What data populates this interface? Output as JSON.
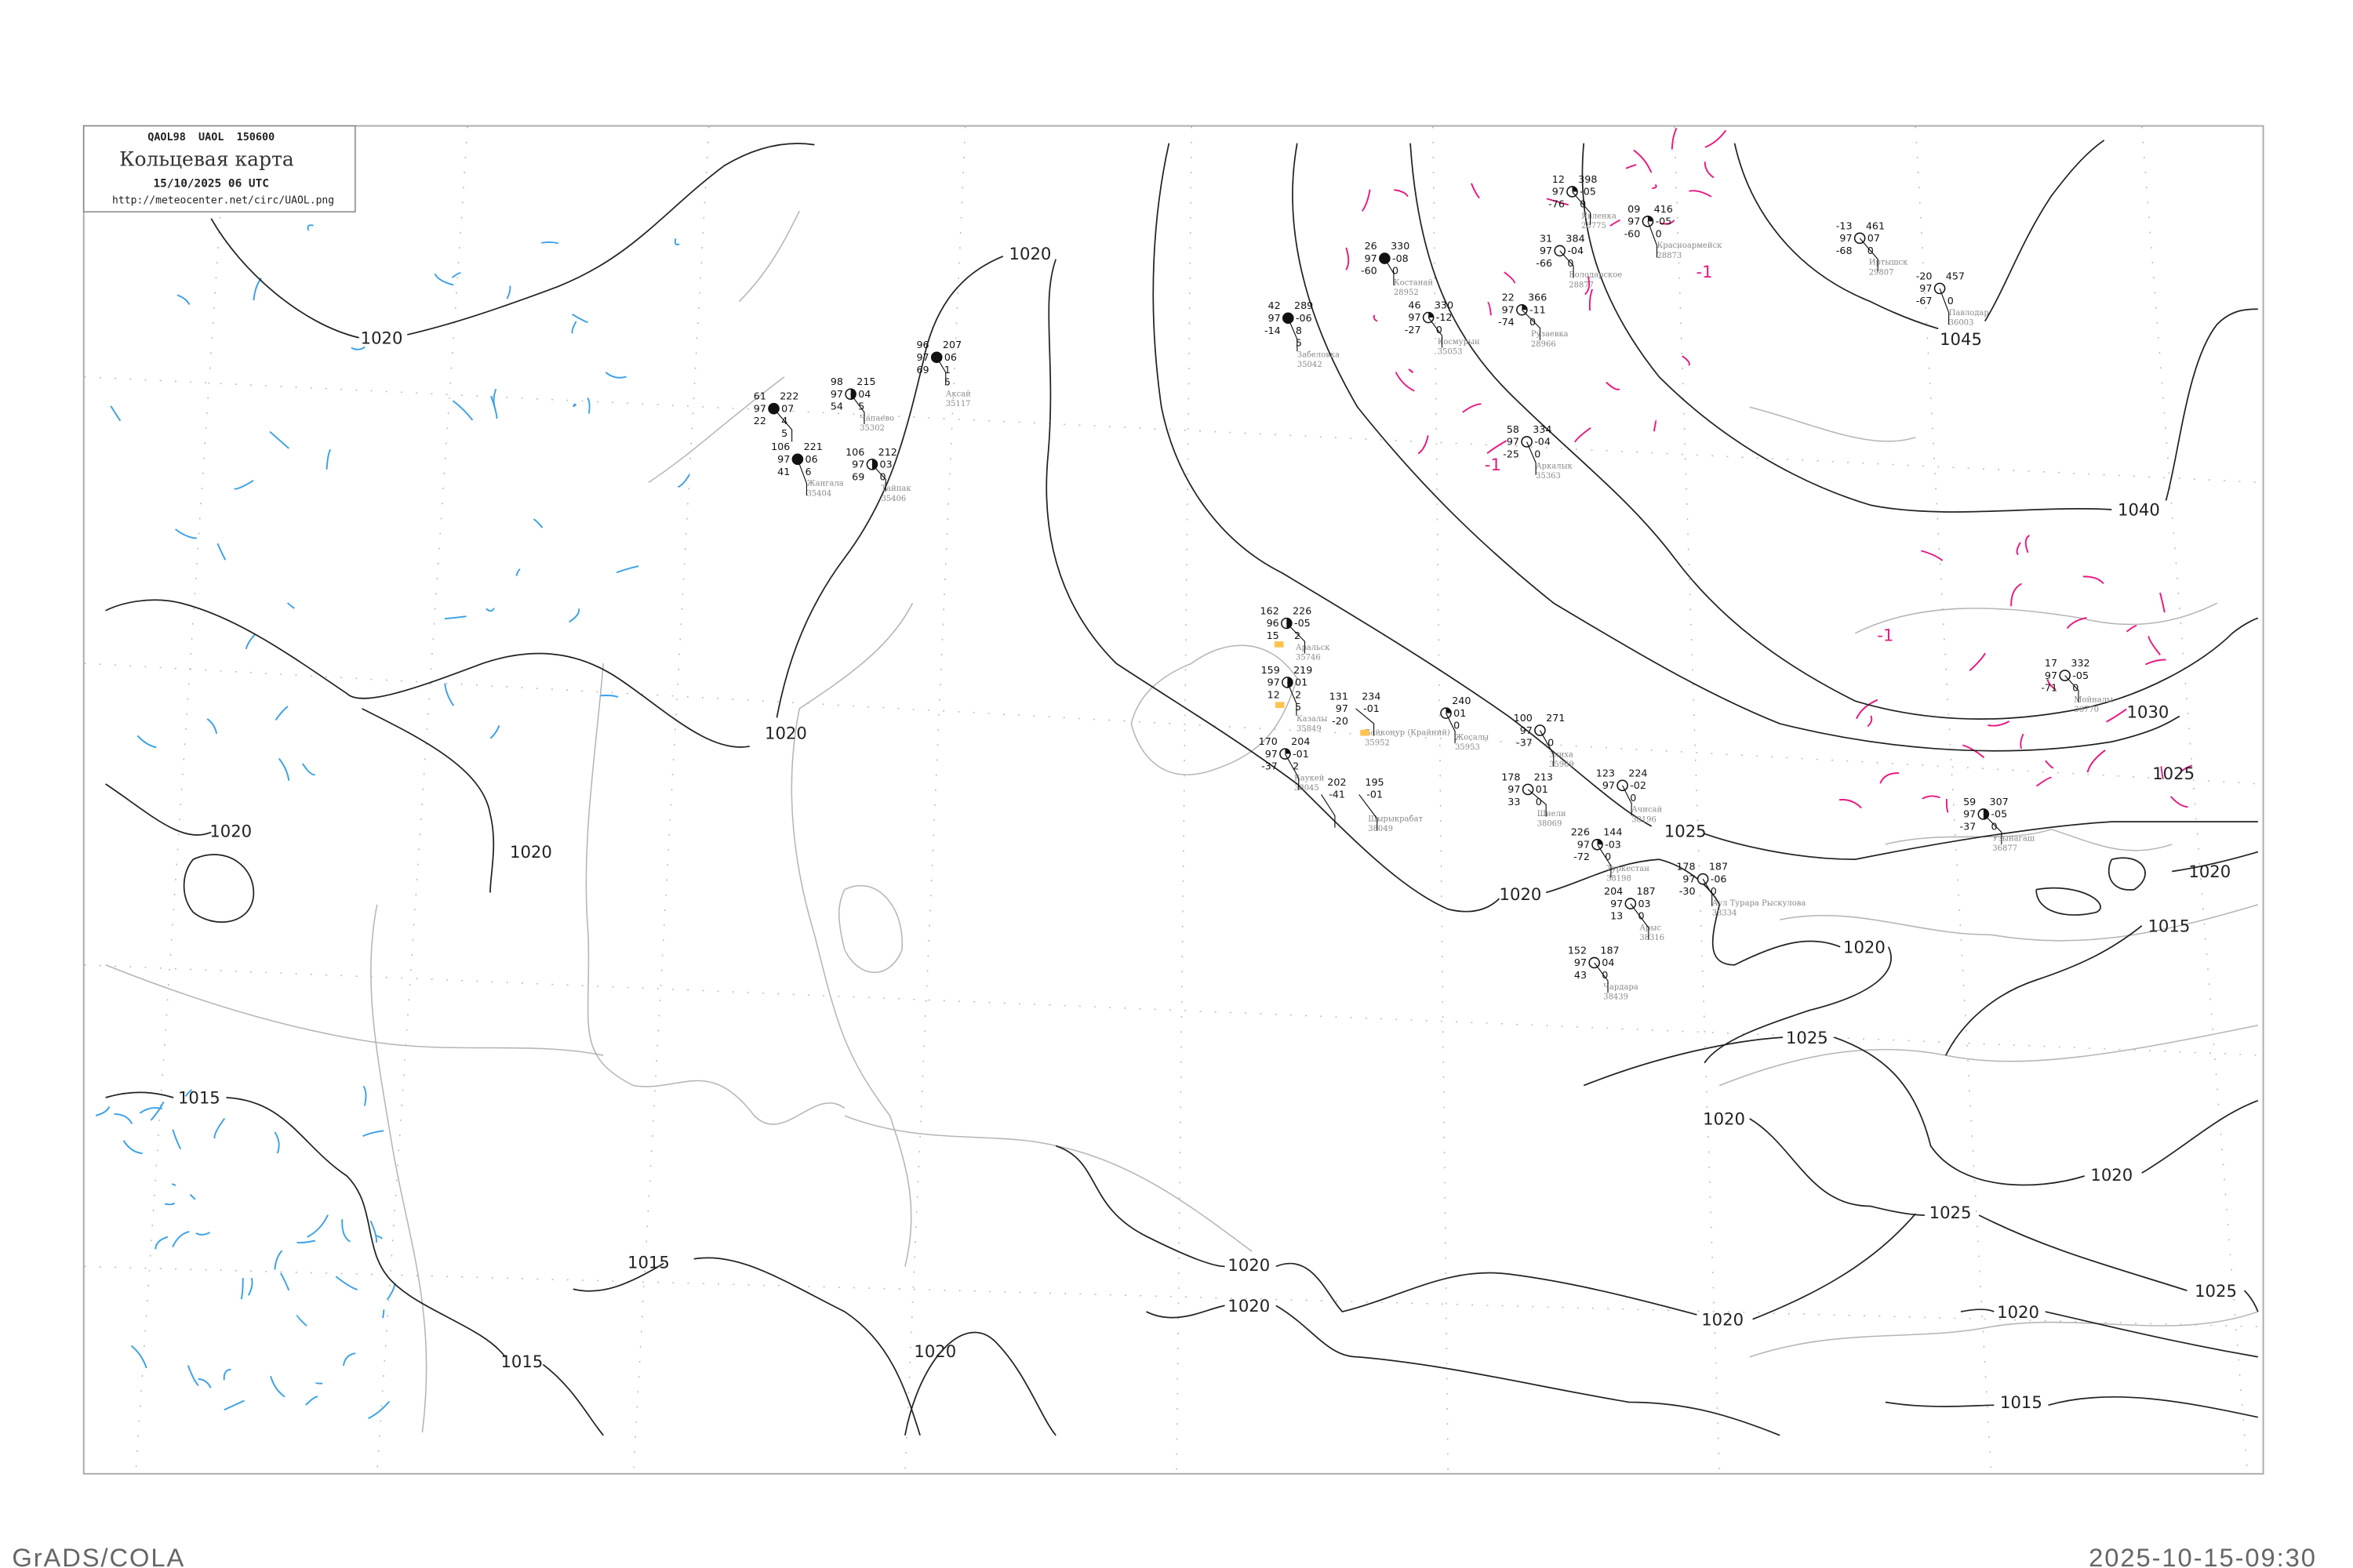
{
  "header": {
    "code_line": "QAOL98  UAOL  150600",
    "title": "Кольцевая карта",
    "datetime": "15/10/2025 06 UTC",
    "url": "http://meteocenter.net/circ/UAOL.png"
  },
  "footer": {
    "left": "GrADS/COLA",
    "right": "2025-10-15-09:30"
  },
  "colors": {
    "isobar": "#222222",
    "coastline": "#b5b5b5",
    "negative_tendency": "#3aa0e8",
    "positive_tendency": "#e8187f",
    "station_name": "#888888",
    "highlight_box": "#ffc24d"
  },
  "isobar_labels": [
    "1020",
    "1020",
    "1020",
    "1020",
    "1020",
    "1020",
    "1025",
    "1040",
    "1045",
    "1030",
    "1025",
    "1020",
    "1015",
    "1020",
    "1025",
    "1020",
    "1020",
    "1025",
    "1020",
    "1020",
    "1020",
    "1020",
    "1025",
    "1015",
    "1015",
    "1015",
    "1015",
    "1020",
    "-1",
    "-1",
    "-1"
  ],
  "stations": [
    {
      "name": "Аксай",
      "id": "35117",
      "tl": "96",
      "ml": "97",
      "bl": "69",
      "tr": "207",
      "mr": "06",
      "br": "1",
      "br2": "5",
      "cover": 1
    },
    {
      "name": "Чапаево",
      "id": "35302",
      "tl": "98",
      "ml": "97",
      "bl": "54",
      "tr": "215",
      "mr": "04",
      "br": "5",
      "br2": "",
      "cover": 0.5
    },
    {
      "name": "",
      "id": "",
      "tl": "61",
      "ml": "97",
      "bl": "22",
      "tr": "222",
      "mr": "07",
      "br": "4",
      "br2": "5",
      "cover": 1
    },
    {
      "name": "Жангала",
      "id": "35404",
      "tl": "106",
      "ml": "97",
      "bl": "41",
      "tr": "221",
      "mr": "06",
      "br": "6",
      "br2": "",
      "cover": 1
    },
    {
      "name": "Тайпак",
      "id": "35406",
      "tl": "106",
      "ml": "97",
      "bl": "69",
      "tr": "212",
      "mr": "03",
      "br": "0",
      "br2": "",
      "cover": 0.5
    },
    {
      "name": "Аральск",
      "id": "35746",
      "tl": "162",
      "ml": "96",
      "bl": "15",
      "tr": "226",
      "mr": "-05",
      "br": "2",
      "br2": "",
      "cover": 0.5
    },
    {
      "name": "Казалы",
      "id": "35849",
      "tl": "159",
      "ml": "97",
      "bl": "12",
      "tr": "219",
      "mr": "01",
      "br": "2",
      "br2": "5",
      "cover": 0.5
    },
    {
      "name": "Каукей",
      "id": "38045",
      "tl": "170",
      "ml": "97",
      "bl": "-37",
      "tr": "204",
      "mr": "-01",
      "br": "2",
      "br2": "",
      "cover": 0.25
    },
    {
      "name": "Байконур (Крайний)",
      "id": "35952",
      "tl": "131",
      "ml": "97",
      "bl": "-20",
      "tr": "234",
      "mr": "-01",
      "br": "",
      "br2": "",
      "cover": null
    },
    {
      "name": "Жосалы",
      "id": "35953",
      "tl": "",
      "ml": "",
      "bl": "",
      "tr": "240",
      "mr": "01",
      "br": "0",
      "br2": "",
      "cover": 0.25
    },
    {
      "name": "",
      "id": "",
      "tl": "",
      "ml": "",
      "bl": "",
      "tr": "202",
      "mr": "-41",
      "br": "",
      "br2": "",
      "cover": null
    },
    {
      "name": "Шырыкрабат",
      "id": "38049",
      "tl": "",
      "ml": "",
      "bl": "",
      "tr": "195",
      "mr": "-01",
      "br": "",
      "br2": "",
      "cover": null
    },
    {
      "name": "Костанай",
      "id": "28952",
      "tl": "26",
      "ml": "97",
      "bl": "-60",
      "tr": "330",
      "mr": "-08",
      "br": "0",
      "br2": "",
      "cover": 1
    },
    {
      "name": "Космурын",
      "id": "35053",
      "tl": "46",
      "ml": "97",
      "bl": "-27",
      "tr": "330",
      "mr": "-12",
      "br": "0",
      "br2": "",
      "cover": 0.25
    },
    {
      "name": "Явленка",
      "id": "28775",
      "tl": "12",
      "ml": "97",
      "bl": "-76",
      "tr": "398",
      "mr": "-05",
      "br": "0",
      "br2": "",
      "cover": 0.25
    },
    {
      "name": "Красноармейск",
      "id": "28873",
      "tl": "09",
      "ml": "97",
      "bl": "-60",
      "tr": "416",
      "mr": "-05",
      "br": "0",
      "br2": "",
      "cover": 0.25
    },
    {
      "name": "Володарское",
      "id": "28877",
      "tl": "31",
      "ml": "97",
      "bl": "-66",
      "tr": "384",
      "mr": "-04",
      "br": "0",
      "br2": "",
      "cover": 0
    },
    {
      "name": "Рузаевка",
      "id": "28966",
      "tl": "22",
      "ml": "97",
      "bl": "-74",
      "tr": "366",
      "mr": "-11",
      "br": "0",
      "br2": "",
      "cover": 0.25
    },
    {
      "name": "Аркалык",
      "id": "35363",
      "tl": "58",
      "ml": "97",
      "bl": "-25",
      "tr": "334",
      "mr": "-04",
      "br": "0",
      "br2": "",
      "cover": 0
    },
    {
      "name": "Злиха",
      "id": "35969",
      "tl": "100",
      "ml": "97",
      "bl": "-37",
      "tr": "271",
      "mr": "",
      "br": "0",
      "br2": "",
      "cover": 0
    },
    {
      "name": "Шиели",
      "id": "38069",
      "tl": "178",
      "ml": "97",
      "bl": "33",
      "tr": "213",
      "mr": "01",
      "br": "0",
      "br2": "",
      "cover": 0
    },
    {
      "name": "Ачисай",
      "id": "38196",
      "tl": "123",
      "ml": "97",
      "bl": "",
      "tr": "224",
      "mr": "-02",
      "br": "0",
      "br2": "",
      "cover": 0
    },
    {
      "name": "Туркестан",
      "id": "38198",
      "tl": "226",
      "ml": "97",
      "bl": "-72",
      "tr": "144",
      "mr": "-03",
      "br": "0",
      "br2": "",
      "cover": 0.25
    },
    {
      "name": "Арыс",
      "id": "38316",
      "tl": "204",
      "ml": "97",
      "bl": "13",
      "tr": "187",
      "mr": "03",
      "br": "0",
      "br2": "",
      "cover": 0
    },
    {
      "name": "Аул Турара Рыскулова",
      "id": "38334",
      "tl": "178",
      "ml": "97",
      "bl": "-30",
      "tr": "187",
      "mr": "-06",
      "br": "0",
      "br2": "",
      "cover": 0
    },
    {
      "name": "Чардара",
      "id": "38439",
      "tl": "152",
      "ml": "97",
      "bl": "43",
      "tr": "187",
      "mr": "04",
      "br": "0",
      "br2": "",
      "cover": 0
    },
    {
      "name": "Иртышск",
      "id": "29807",
      "tl": "-13",
      "ml": "97",
      "bl": "-68",
      "tr": "461",
      "mr": "07",
      "br": "0",
      "br2": "",
      "cover": 0
    },
    {
      "name": "Павлодар",
      "id": "36003",
      "tl": "-20",
      "ml": "97",
      "bl": "-67",
      "tr": "457",
      "mr": "",
      "br": "0",
      "br2": "",
      "cover": 0
    },
    {
      "name": "Мойналы",
      "id": "36770",
      "tl": "17",
      "ml": "97",
      "bl": "-71",
      "tr": "332",
      "mr": "-05",
      "br": "0",
      "br2": "",
      "cover": 0
    },
    {
      "name": "Узынагаш",
      "id": "36877",
      "tl": "59",
      "ml": "97",
      "bl": "-37",
      "tr": "307",
      "mr": "-05",
      "br": "0",
      "br2": "",
      "cover": 0.5
    },
    {
      "name": "Забеловка",
      "id": "35042",
      "tl": "42",
      "ml": "97",
      "bl": "-14",
      "tr": "289",
      "mr": "-06",
      "br": "8",
      "br2": "5",
      "cover": 1
    }
  ]
}
